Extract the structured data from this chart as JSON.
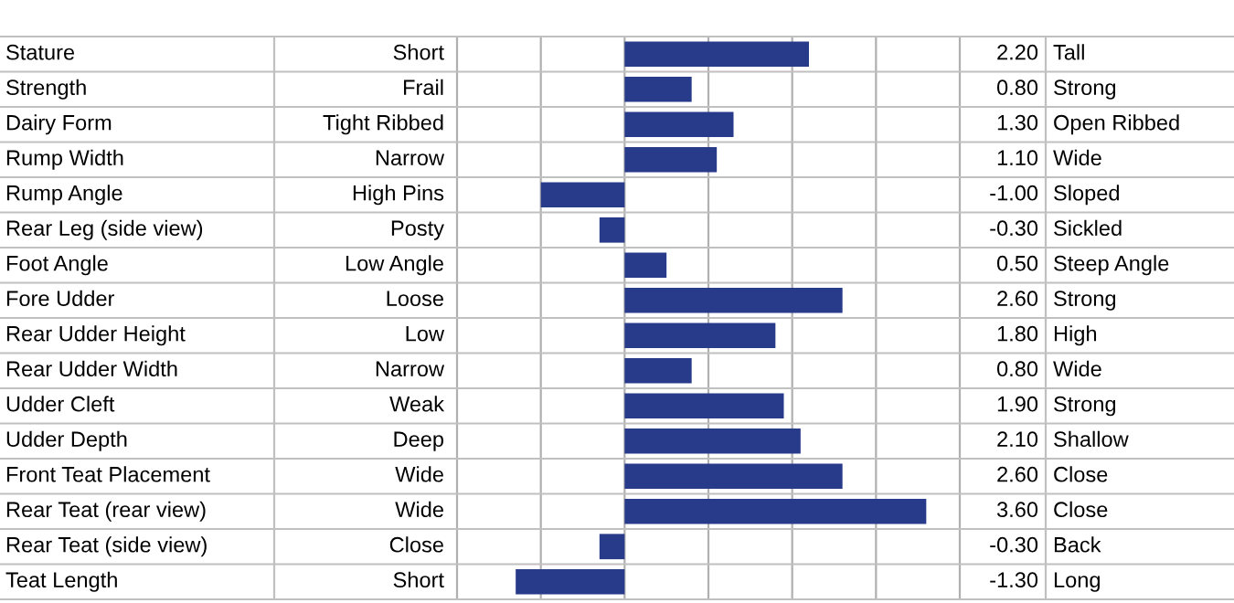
{
  "chart_data": {
    "type": "bar",
    "orientation": "horizontal",
    "categories": [
      "Stature",
      "Strength",
      "Dairy Form",
      "Rump Width",
      "Rump Angle",
      "Rear Leg (side view)",
      "Foot Angle",
      "Fore Udder",
      "Rear Udder Height",
      "Rear Udder Width",
      "Udder Cleft",
      "Udder Depth",
      "Front Teat Placement",
      "Rear Teat (rear view)",
      "Rear Teat (side view)",
      "Teat Length"
    ],
    "values": [
      2.2,
      0.8,
      1.3,
      1.1,
      -1.0,
      -0.3,
      0.5,
      2.6,
      1.8,
      0.8,
      1.9,
      2.1,
      2.6,
      3.6,
      -0.3,
      -1.3
    ],
    "value_labels": [
      "2.20",
      "0.80",
      "1.30",
      "1.10",
      "-1.00",
      "-0.30",
      "0.50",
      "2.60",
      "1.80",
      "0.80",
      "1.90",
      "2.10",
      "2.60",
      "3.60",
      "-0.30",
      "-1.30"
    ],
    "color": "#283a8a",
    "xlim": [
      -2,
      4
    ],
    "xticks": [
      {
        "value": -1,
        "label": null
      },
      {
        "value": 0,
        "label": null
      },
      {
        "value": 1,
        "label": null
      },
      {
        "value": 2,
        "label": null
      },
      {
        "value": 3,
        "label": null
      }
    ],
    "grid": "x",
    "annotations": [
      "Short",
      "Frail",
      "Tight Ribbed",
      "Narrow",
      "High Pins",
      "Posty",
      "Low Angle",
      "Loose",
      "Low",
      "Narrow",
      "Weak",
      "Deep",
      "Wide",
      "Wide",
      "Close",
      "Short",
      "Tall",
      "Strong",
      "Open Ribbed",
      "Wide",
      "Sloped",
      "Sickled",
      "Steep Angle",
      "Strong",
      "High",
      "Wide",
      "Strong",
      "Shallow",
      "Close",
      "Close",
      "Back",
      "Long"
    ]
  }
}
